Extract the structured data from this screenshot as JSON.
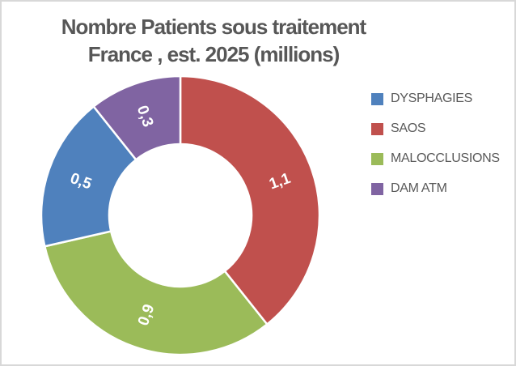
{
  "frame": {
    "background": "#FFFFFF",
    "border_color": "#D8D8D8"
  },
  "title": {
    "line1": "Nombre Patients sous traitement",
    "line2": "France , est. 2025 (millions)",
    "color": "#575757"
  },
  "chart_data": {
    "type": "pie",
    "subtype": "donut",
    "title": "Nombre Patients sous traitement France , est. 2025 (millions)",
    "unit": "millions",
    "total": 2.8,
    "direction": "clockwise",
    "start_angle_deg": 0,
    "hole_ratio": 0.51,
    "data_label_color": "#FFFFFF",
    "separator_color": "#FFFFFF",
    "segments_clockwise_from_top": [
      {
        "category": "SAOS",
        "value": 1.1,
        "label": "1,1",
        "color": "#C0504D"
      },
      {
        "category": "MALOCCLUSIONS",
        "value": 0.9,
        "label": "0,9",
        "color": "#9BBB59"
      },
      {
        "category": "DYSPHAGIES",
        "value": 0.5,
        "label": "0,5",
        "color": "#4F81BD"
      },
      {
        "category": "DAM ATM",
        "value": 0.3,
        "label": "0,3",
        "color": "#8064A2"
      }
    ],
    "legend": {
      "position": "right",
      "text_color": "#595959",
      "items": [
        {
          "label": "DYSPHAGIES",
          "color": "#4F81BD"
        },
        {
          "label": "SAOS",
          "color": "#C0504D"
        },
        {
          "label": "MALOCCLUSIONS",
          "color": "#9BBB59"
        },
        {
          "label": "DAM ATM",
          "color": "#8064A2"
        }
      ]
    }
  }
}
